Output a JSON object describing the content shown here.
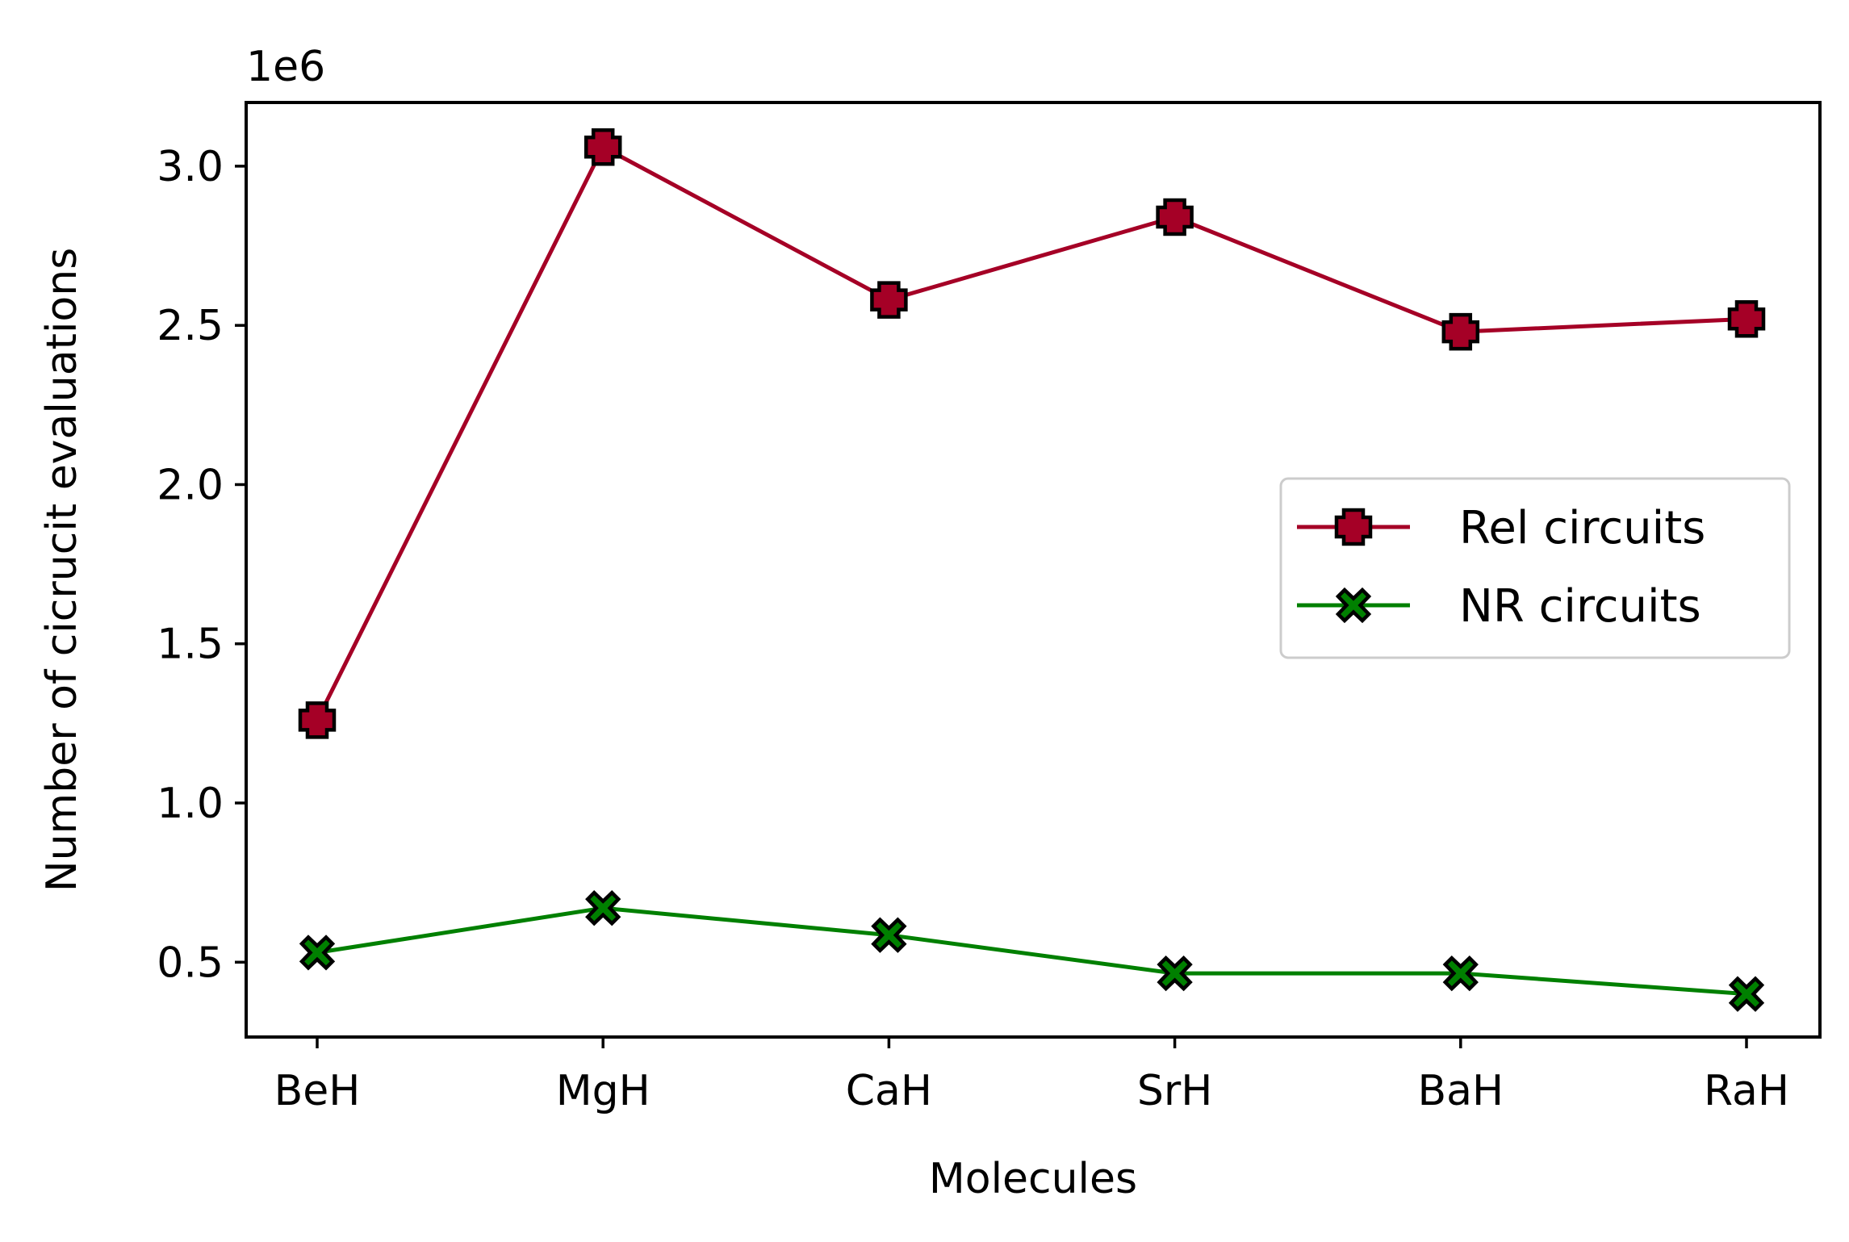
{
  "chart_data": {
    "type": "line",
    "categories": [
      "BeH",
      "MgH",
      "CaH",
      "SrH",
      "BaH",
      "RaH"
    ],
    "series": [
      {
        "name": "Rel circuits",
        "values": [
          1.26,
          3.06,
          2.58,
          2.84,
          2.48,
          2.52
        ],
        "color": "#a50026",
        "marker": "plus-filled"
      },
      {
        "name": "NR circuits",
        "values": [
          0.53,
          0.67,
          0.585,
          0.465,
          0.465,
          0.4
        ],
        "color": "#008000",
        "marker": "x-filled"
      }
    ],
    "xlabel": "Molecules",
    "ylabel": "Number of cicrucit evaluations",
    "y_offset_label": "1e6",
    "ylim": [
      0.265,
      3.2
    ],
    "yticks": [
      0.5,
      1.0,
      1.5,
      2.0,
      2.5,
      3.0
    ],
    "ytick_labels": [
      "0.5",
      "1.0",
      "1.5",
      "2.0",
      "2.5",
      "3.0"
    ],
    "grid": false,
    "legend_position": "center-right"
  }
}
